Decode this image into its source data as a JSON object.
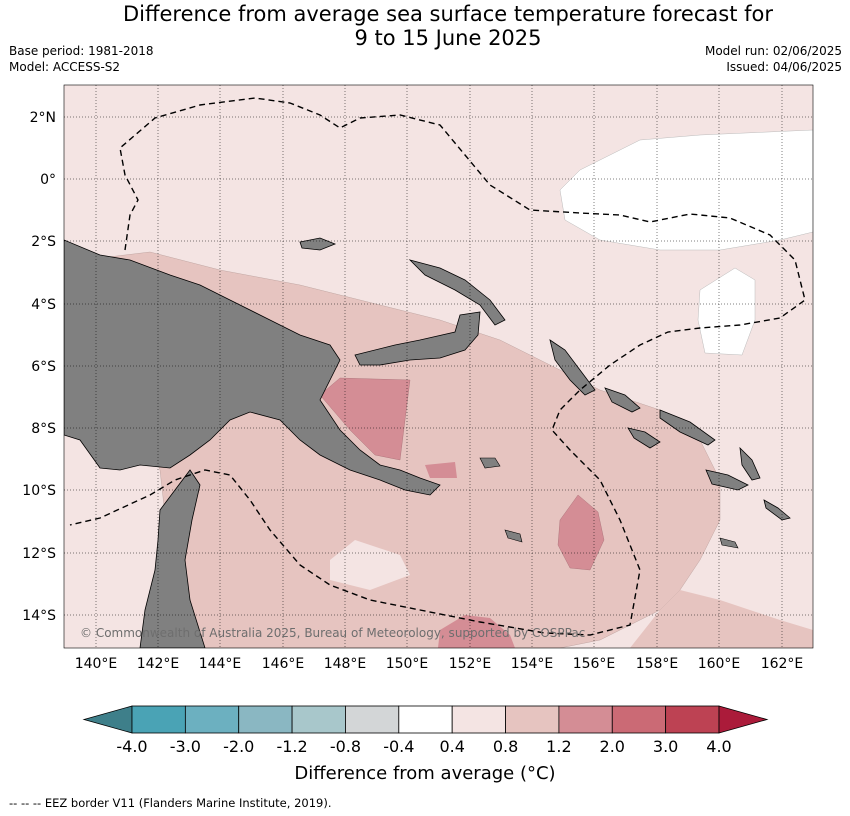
{
  "header": {
    "title_line1": "Difference from average sea surface temperature forecast for",
    "title_line2": "9 to 15 June 2025",
    "base_period": "Base period: 1981-2018",
    "model": "Model: ACCESS-S2",
    "model_run": "Model run: 02/06/2025",
    "issued": "Issued: 04/06/2025"
  },
  "map": {
    "lat_labels": [
      "2°N",
      "0°",
      "2°S",
      "4°S",
      "6°S",
      "8°S",
      "10°S",
      "12°S",
      "14°S"
    ],
    "lon_labels": [
      "140°E",
      "142°E",
      "144°E",
      "146°E",
      "148°E",
      "150°E",
      "152°E",
      "154°E",
      "156°E",
      "158°E",
      "160°E",
      "162°E"
    ],
    "copyright": "© Commonwealth of Australia 2025, Bureau of Meteorology, supported by COSPPac",
    "land_color": "#808080",
    "boundary_style": "dashed"
  },
  "colorbar": {
    "title": "Difference from average (°C)",
    "tick_labels": [
      "-4.0",
      "-3.0",
      "-2.0",
      "-1.2",
      "-0.8",
      "-0.4",
      "0.4",
      "0.8",
      "1.2",
      "2.0",
      "3.0",
      "4.0"
    ],
    "colors": [
      "#3e7f8a",
      "#4aa3b5",
      "#6cb0c0",
      "#8ab7c2",
      "#a8c7cb",
      "#d3d6d7",
      "#ffffff",
      "#f4e4e3",
      "#e6c4c0",
      "#d48d95",
      "#cb6a75",
      "#bd4253",
      "#ab1b3a"
    ]
  },
  "footer": {
    "legend_text": "--  --  -- EEZ border V11 (Flanders Marine Institute, 2019)."
  }
}
